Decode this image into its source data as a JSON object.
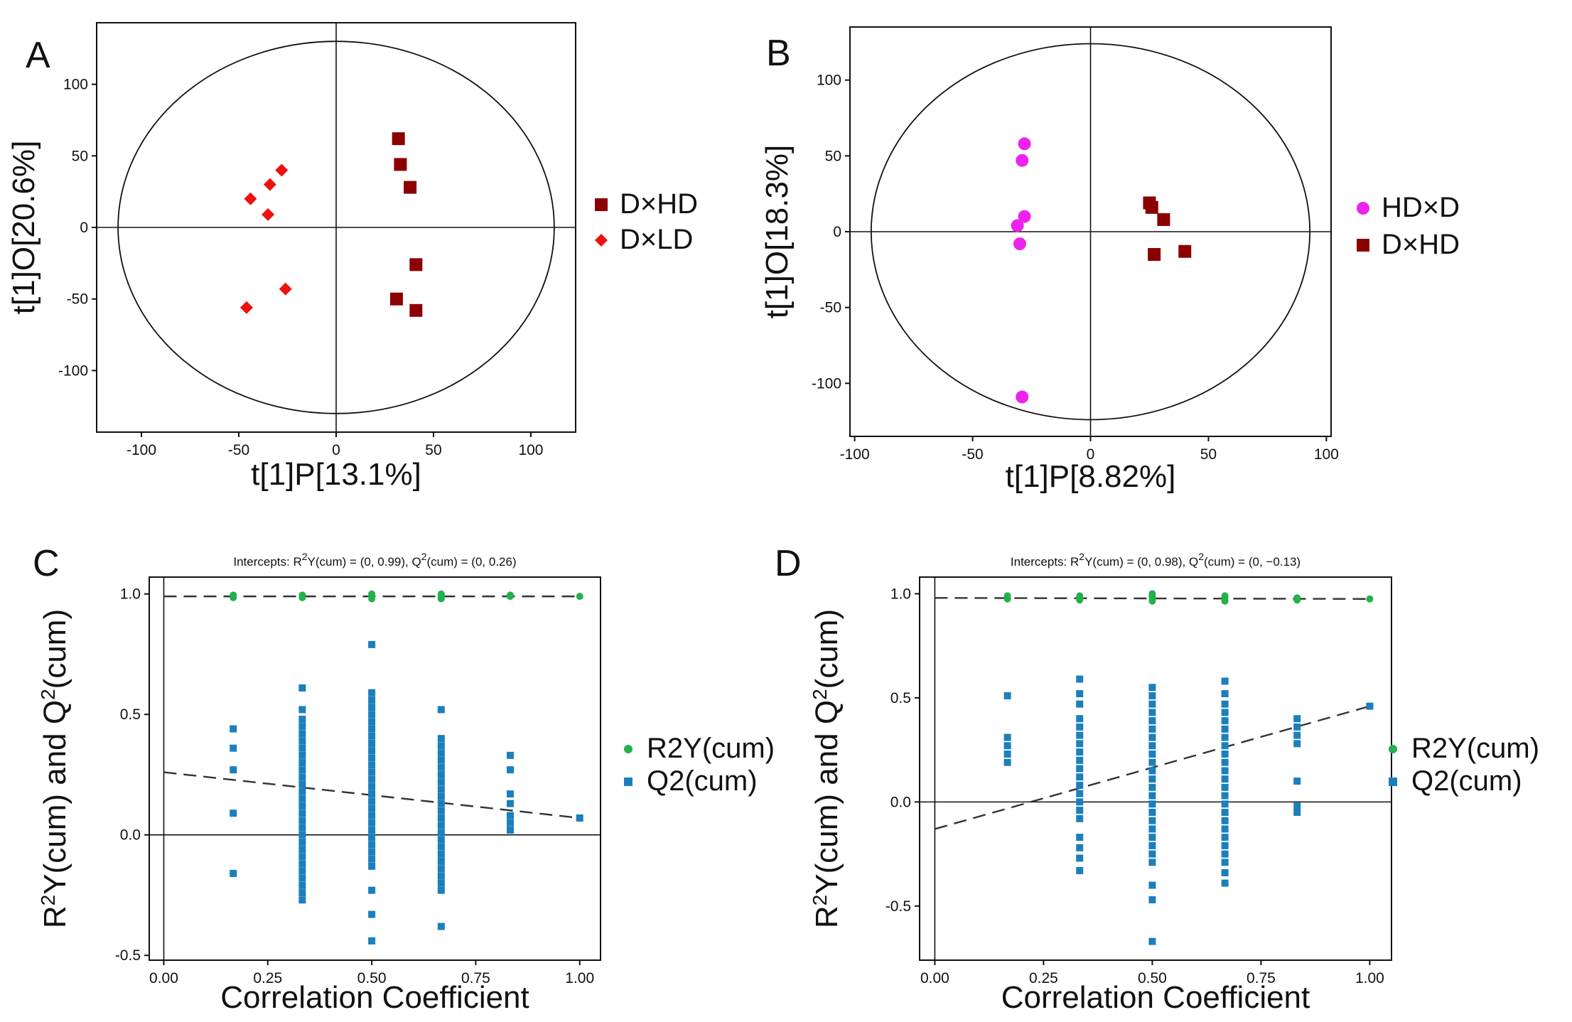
{
  "charts": [
    {
      "type": "scatter",
      "panel_label": "A",
      "xlabel": "t[1]P[13.1%]",
      "ylabel": "t[1]O[20.6%]",
      "xlim": [
        -123,
        123
      ],
      "ylim": [
        -143,
        143
      ],
      "xticks": [
        -100,
        -50,
        0,
        50,
        100
      ],
      "yticks": [
        -100,
        -50,
        0,
        50,
        100
      ],
      "ellipse": {
        "rx": 112,
        "ry": 130
      },
      "series": [
        {
          "name": "D×HD",
          "marker": "square",
          "color": "#8b0000",
          "points": [
            [
              32,
              62
            ],
            [
              33,
              44
            ],
            [
              38,
              28
            ],
            [
              41,
              -26
            ],
            [
              31,
              -50
            ],
            [
              41,
              -58
            ]
          ]
        },
        {
          "name": "D×LD",
          "marker": "diamond",
          "color": "#ee1111",
          "points": [
            [
              -28,
              40
            ],
            [
              -44,
              20
            ],
            [
              -34,
              30
            ],
            [
              -35,
              9
            ],
            [
              -26,
              -43
            ],
            [
              -46,
              -56
            ]
          ]
        }
      ]
    },
    {
      "type": "scatter",
      "panel_label": "B",
      "xlabel": "t[1]P[8.82%]",
      "ylabel": "t[1]O[18.3%]",
      "xlim": [
        -102,
        102
      ],
      "ylim": [
        -135,
        135
      ],
      "xticks": [
        -100,
        -50,
        0,
        50,
        100
      ],
      "yticks": [
        -100,
        -50,
        0,
        50,
        100
      ],
      "ellipse": {
        "rx": 93,
        "ry": 124
      },
      "series": [
        {
          "name": "HD×D",
          "marker": "circle",
          "color": "#ee22ee",
          "points": [
            [
              -28,
              58
            ],
            [
              -29,
              47
            ],
            [
              -28,
              10
            ],
            [
              -31,
              4
            ],
            [
              -30,
              -8
            ],
            [
              -29,
              -109
            ]
          ]
        },
        {
          "name": "D×HD",
          "marker": "square",
          "color": "#8b0000",
          "points": [
            [
              25,
              19
            ],
            [
              26,
              16
            ],
            [
              31,
              8
            ],
            [
              27,
              -15
            ],
            [
              40,
              -13
            ]
          ]
        }
      ]
    },
    {
      "type": "scatter",
      "panel_label": "C",
      "title": "Intercepts: R2Y(cum) = (0, 0.99), Q2(cum) = (0, 0.26)",
      "title_parts": {
        "a": "Intercepts: R",
        "b": "Y(cum) = (0, 0.99), Q",
        "c": "(cum) = (0, 0.26)",
        "sup": "2"
      },
      "xlabel": "Correlation Coefficient",
      "ylabel": "R2Y(cum) and Q2(cum)",
      "ylabel_parts": {
        "a": "R",
        "b": "Y(cum) and Q",
        "c": "(cum)",
        "sup": "2"
      },
      "xlim": [
        -0.035,
        1.05
      ],
      "ylim": [
        -0.52,
        1.07
      ],
      "xticks": [
        0.0,
        0.25,
        0.5,
        0.75,
        1.0
      ],
      "xtick_labels": [
        "0.00",
        "0.25",
        "0.50",
        "0.75",
        "1.00"
      ],
      "yticks": [
        -0.5,
        0.0,
        0.5,
        1.0
      ],
      "ytick_labels": [
        "-0.5",
        "0.0",
        "0.5",
        "1.0"
      ],
      "r2_intercept": 0.99,
      "r2_end": 0.99,
      "q2_intercept": 0.26,
      "q2_end": 0.07,
      "series": [
        {
          "name": "R2Y(cum)",
          "marker": "circle",
          "color": "#22b14c",
          "points": [
            [
              0.167,
              0.985
            ],
            [
              0.167,
              0.995
            ],
            [
              0.333,
              0.985
            ],
            [
              0.333,
              0.995
            ],
            [
              0.5,
              0.98
            ],
            [
              0.5,
              0.99
            ],
            [
              0.5,
              1.0
            ],
            [
              0.667,
              0.98
            ],
            [
              0.667,
              0.99
            ],
            [
              0.667,
              1.0
            ],
            [
              0.833,
              0.99
            ],
            [
              0.833,
              0.995
            ],
            [
              1.0,
              0.99
            ]
          ]
        },
        {
          "name": "Q2(cum)",
          "marker": "square",
          "color": "#1b7fbc",
          "points": [
            [
              0.167,
              0.44
            ],
            [
              0.167,
              0.36
            ],
            [
              0.167,
              0.27
            ],
            [
              0.167,
              0.09
            ],
            [
              0.167,
              -0.16
            ],
            [
              0.333,
              0.61
            ],
            [
              0.333,
              0.52
            ],
            [
              0.333,
              0.48
            ],
            [
              0.333,
              0.45
            ],
            [
              0.333,
              0.42
            ],
            [
              0.333,
              0.39
            ],
            [
              0.333,
              0.36
            ],
            [
              0.333,
              0.33
            ],
            [
              0.333,
              0.3
            ],
            [
              0.333,
              0.27
            ],
            [
              0.333,
              0.24
            ],
            [
              0.333,
              0.21
            ],
            [
              0.333,
              0.18
            ],
            [
              0.333,
              0.15
            ],
            [
              0.333,
              0.12
            ],
            [
              0.333,
              0.09
            ],
            [
              0.333,
              0.06
            ],
            [
              0.333,
              0.03
            ],
            [
              0.333,
              0.0
            ],
            [
              0.333,
              -0.03
            ],
            [
              0.333,
              -0.06
            ],
            [
              0.333,
              -0.09
            ],
            [
              0.333,
              -0.12
            ],
            [
              0.333,
              -0.15
            ],
            [
              0.333,
              -0.18
            ],
            [
              0.333,
              -0.21
            ],
            [
              0.333,
              -0.24
            ],
            [
              0.333,
              -0.27
            ],
            [
              0.5,
              0.79
            ],
            [
              0.5,
              0.59
            ],
            [
              0.5,
              0.56
            ],
            [
              0.5,
              0.53
            ],
            [
              0.5,
              0.5
            ],
            [
              0.5,
              0.47
            ],
            [
              0.5,
              0.44
            ],
            [
              0.5,
              0.41
            ],
            [
              0.5,
              0.38
            ],
            [
              0.5,
              0.35
            ],
            [
              0.5,
              0.32
            ],
            [
              0.5,
              0.29
            ],
            [
              0.5,
              0.26
            ],
            [
              0.5,
              0.23
            ],
            [
              0.5,
              0.2
            ],
            [
              0.5,
              0.17
            ],
            [
              0.5,
              0.14
            ],
            [
              0.5,
              0.11
            ],
            [
              0.5,
              0.08
            ],
            [
              0.5,
              0.05
            ],
            [
              0.5,
              0.02
            ],
            [
              0.5,
              -0.01
            ],
            [
              0.5,
              -0.04
            ],
            [
              0.5,
              -0.07
            ],
            [
              0.5,
              -0.1
            ],
            [
              0.5,
              -0.13
            ],
            [
              0.5,
              -0.23
            ],
            [
              0.5,
              -0.33
            ],
            [
              0.5,
              -0.44
            ],
            [
              0.667,
              0.52
            ],
            [
              0.667,
              0.4
            ],
            [
              0.667,
              0.37
            ],
            [
              0.667,
              0.34
            ],
            [
              0.667,
              0.31
            ],
            [
              0.667,
              0.28
            ],
            [
              0.667,
              0.25
            ],
            [
              0.667,
              0.22
            ],
            [
              0.667,
              0.19
            ],
            [
              0.667,
              0.16
            ],
            [
              0.667,
              0.13
            ],
            [
              0.667,
              0.1
            ],
            [
              0.667,
              0.07
            ],
            [
              0.667,
              0.04
            ],
            [
              0.667,
              0.01
            ],
            [
              0.667,
              -0.02
            ],
            [
              0.667,
              -0.05
            ],
            [
              0.667,
              -0.08
            ],
            [
              0.667,
              -0.11
            ],
            [
              0.667,
              -0.14
            ],
            [
              0.667,
              -0.17
            ],
            [
              0.667,
              -0.2
            ],
            [
              0.667,
              -0.23
            ],
            [
              0.667,
              -0.38
            ],
            [
              0.833,
              0.33
            ],
            [
              0.833,
              0.27
            ],
            [
              0.833,
              0.17
            ],
            [
              0.833,
              0.13
            ],
            [
              0.833,
              0.08
            ],
            [
              0.833,
              0.05
            ],
            [
              0.833,
              0.02
            ],
            [
              1.0,
              0.07
            ]
          ]
        }
      ]
    },
    {
      "type": "scatter",
      "panel_label": "D",
      "title": "Intercepts: R2Y(cum) = (0, 0.98), Q2(cum) = (0, −0.13)",
      "title_parts": {
        "a": "Intercepts: R",
        "b": "Y(cum) = (0, 0.98), Q",
        "c": "(cum) = (0, −0.13)",
        "sup": "2"
      },
      "xlabel": "Correlation Coefficient",
      "ylabel": "R2Y(cum) and Q2(cum)",
      "ylabel_parts": {
        "a": "R",
        "b": "Y(cum) and Q",
        "c": "(cum)",
        "sup": "2"
      },
      "xlim": [
        -0.035,
        1.05
      ],
      "ylim": [
        -0.76,
        1.08
      ],
      "xticks": [
        0.0,
        0.25,
        0.5,
        0.75,
        1.0
      ],
      "xtick_labels": [
        "0.00",
        "0.25",
        "0.50",
        "0.75",
        "1.00"
      ],
      "yticks": [
        -0.5,
        0.0,
        0.5,
        1.0
      ],
      "ytick_labels": [
        "-0.5",
        "0.0",
        "0.5",
        "1.0"
      ],
      "r2_intercept": 0.98,
      "r2_end": 0.975,
      "q2_intercept": -0.13,
      "q2_end": 0.46,
      "series": [
        {
          "name": "R2Y(cum)",
          "marker": "circle",
          "color": "#22b14c",
          "points": [
            [
              0.167,
              0.975
            ],
            [
              0.167,
              0.99
            ],
            [
              0.333,
              0.97
            ],
            [
              0.333,
              0.98
            ],
            [
              0.333,
              0.99
            ],
            [
              0.5,
              0.965
            ],
            [
              0.5,
              0.98
            ],
            [
              0.5,
              0.99
            ],
            [
              0.5,
              1.0
            ],
            [
              0.667,
              0.965
            ],
            [
              0.667,
              0.98
            ],
            [
              0.667,
              0.99
            ],
            [
              0.833,
              0.97
            ],
            [
              0.833,
              0.98
            ],
            [
              1.0,
              0.975
            ]
          ]
        },
        {
          "name": "Q2(cum)",
          "marker": "square",
          "color": "#1b7fbc",
          "points": [
            [
              0.167,
              0.51
            ],
            [
              0.167,
              0.31
            ],
            [
              0.167,
              0.27
            ],
            [
              0.167,
              0.23
            ],
            [
              0.167,
              0.19
            ],
            [
              0.333,
              0.59
            ],
            [
              0.333,
              0.52
            ],
            [
              0.333,
              0.47
            ],
            [
              0.333,
              0.4
            ],
            [
              0.333,
              0.36
            ],
            [
              0.333,
              0.32
            ],
            [
              0.333,
              0.28
            ],
            [
              0.333,
              0.24
            ],
            [
              0.333,
              0.2
            ],
            [
              0.333,
              0.16
            ],
            [
              0.333,
              0.12
            ],
            [
              0.333,
              0.08
            ],
            [
              0.333,
              0.04
            ],
            [
              0.333,
              0.0
            ],
            [
              0.333,
              -0.04
            ],
            [
              0.333,
              -0.08
            ],
            [
              0.333,
              -0.17
            ],
            [
              0.333,
              -0.22
            ],
            [
              0.333,
              -0.27
            ],
            [
              0.333,
              -0.33
            ],
            [
              0.5,
              0.55
            ],
            [
              0.5,
              0.51
            ],
            [
              0.5,
              0.47
            ],
            [
              0.5,
              0.43
            ],
            [
              0.5,
              0.39
            ],
            [
              0.5,
              0.35
            ],
            [
              0.5,
              0.31
            ],
            [
              0.5,
              0.27
            ],
            [
              0.5,
              0.23
            ],
            [
              0.5,
              0.19
            ],
            [
              0.5,
              0.15
            ],
            [
              0.5,
              0.11
            ],
            [
              0.5,
              0.07
            ],
            [
              0.5,
              0.03
            ],
            [
              0.5,
              -0.01
            ],
            [
              0.5,
              -0.05
            ],
            [
              0.5,
              -0.09
            ],
            [
              0.5,
              -0.13
            ],
            [
              0.5,
              -0.17
            ],
            [
              0.5,
              -0.21
            ],
            [
              0.5,
              -0.25
            ],
            [
              0.5,
              -0.29
            ],
            [
              0.5,
              -0.4
            ],
            [
              0.5,
              -0.47
            ],
            [
              0.5,
              -0.67
            ],
            [
              0.667,
              0.58
            ],
            [
              0.667,
              0.52
            ],
            [
              0.667,
              0.47
            ],
            [
              0.667,
              0.43
            ],
            [
              0.667,
              0.39
            ],
            [
              0.667,
              0.35
            ],
            [
              0.667,
              0.31
            ],
            [
              0.667,
              0.27
            ],
            [
              0.667,
              0.23
            ],
            [
              0.667,
              0.19
            ],
            [
              0.667,
              0.15
            ],
            [
              0.667,
              0.11
            ],
            [
              0.667,
              0.07
            ],
            [
              0.667,
              0.03
            ],
            [
              0.667,
              -0.01
            ],
            [
              0.667,
              -0.05
            ],
            [
              0.667,
              -0.09
            ],
            [
              0.667,
              -0.13
            ],
            [
              0.667,
              -0.17
            ],
            [
              0.667,
              -0.21
            ],
            [
              0.667,
              -0.25
            ],
            [
              0.667,
              -0.29
            ],
            [
              0.667,
              -0.34
            ],
            [
              0.667,
              -0.39
            ],
            [
              0.833,
              0.4
            ],
            [
              0.833,
              0.36
            ],
            [
              0.833,
              0.32
            ],
            [
              0.833,
              0.28
            ],
            [
              0.833,
              0.1
            ],
            [
              0.833,
              -0.02
            ],
            [
              0.833,
              -0.05
            ],
            [
              1.0,
              0.46
            ]
          ]
        }
      ]
    }
  ]
}
